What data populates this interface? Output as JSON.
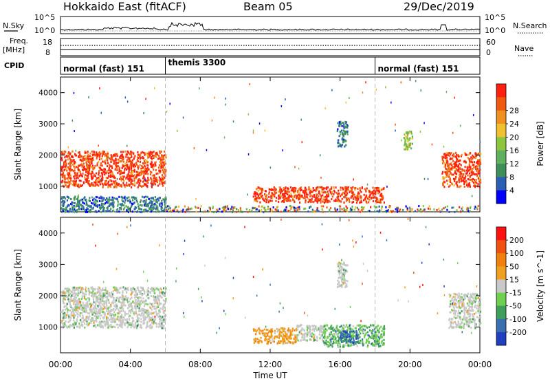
{
  "header": {
    "title": "Hokkaido East (fitACF)",
    "beam": "Beam 05",
    "date": "29/Dec/2019"
  },
  "noise_panel": {
    "left_label": "N.Sky",
    "right_label": "N.Search",
    "tick_top": "10^5",
    "tick_bottom": "10^0",
    "tick_top_right": "10^5",
    "tick_bottom_right": "10^0"
  },
  "freq_panel": {
    "left_label_1": "Freq.",
    "left_label_2": "[MHz]",
    "left_ticks": [
      "18",
      "8"
    ],
    "right_ticks": [
      "60",
      "0"
    ],
    "right_label": "Nave"
  },
  "cpid_panel": {
    "label": "CPID",
    "segments": [
      {
        "start_hour": 0,
        "end_hour": 6,
        "text": "normal (fast) 151"
      },
      {
        "start_hour": 6,
        "end_hour": 18,
        "text": "themis 3300"
      },
      {
        "start_hour": 18,
        "end_hour": 24,
        "text": "normal (fast) 151"
      }
    ]
  },
  "x_axis": {
    "label": "Time UT",
    "range_hours": [
      0,
      24
    ],
    "ticks": [
      "00:00",
      "04:00",
      "08:00",
      "12:00",
      "16:00",
      "20:00",
      "00:00"
    ],
    "tick_hours": [
      0,
      4,
      8,
      12,
      16,
      20,
      24
    ],
    "mode_change_hours": [
      6,
      18
    ]
  },
  "chart_data": [
    {
      "type": "heatmap",
      "parameter": "Power",
      "ylabel": "Slant Range [km]",
      "ylim": [
        180,
        4500
      ],
      "yticks": [
        1000,
        2000,
        3000,
        4000
      ],
      "colorbar_label": "Power [dB]",
      "colorbar_ticks": [
        "4",
        "8",
        "12",
        "16",
        "20",
        "24",
        "28"
      ],
      "colorbar_colors": [
        "#0000ff",
        "#2b5fb3",
        "#3f8f5a",
        "#5fb05f",
        "#8cc63f",
        "#f0c030",
        "#f09020",
        "#f05a10",
        "#ff2010"
      ],
      "regions": [
        {
          "t0": 0.0,
          "t1": 6.0,
          "r0": 1000,
          "r1": 2150,
          "level": "high"
        },
        {
          "t0": 11.0,
          "t1": 18.5,
          "r0": 500,
          "r1": 1000,
          "level": "high"
        },
        {
          "t0": 21.8,
          "t1": 24.0,
          "r0": 1000,
          "r1": 2100,
          "level": "high"
        },
        {
          "t0": 15.8,
          "t1": 16.4,
          "r0": 2300,
          "r1": 3100,
          "level": "low"
        },
        {
          "t0": 19.6,
          "t1": 20.1,
          "r0": 2200,
          "r1": 2800,
          "level": "mid"
        },
        {
          "t0": 6.0,
          "t1": 24.0,
          "r0": 200,
          "r1": 400,
          "level": "mixed"
        },
        {
          "t0": 0.0,
          "t1": 6.0,
          "r0": 200,
          "r1": 700,
          "level": "low"
        }
      ]
    },
    {
      "type": "heatmap",
      "parameter": "Velocity",
      "ylabel": "Slant Range [km]",
      "ylim": [
        180,
        4500
      ],
      "yticks": [
        1000,
        2000,
        3000,
        4000
      ],
      "colorbar_label": "Velocity [m s^-1]",
      "colorbar_ticks": [
        "200",
        "100",
        "50",
        "15",
        "-15",
        "-50",
        "-100",
        "-200"
      ],
      "colorbar_colors": [
        "#2040c0",
        "#3a6fb0",
        "#3f9f5a",
        "#6fcf4f",
        "#c8c8c8",
        "#f0a020",
        "#f08010",
        "#f05010",
        "#ff1010"
      ],
      "regions": [
        {
          "t0": 0.0,
          "t1": 6.0,
          "r0": 1000,
          "r1": 2300,
          "level": "grey"
        },
        {
          "t0": 22.2,
          "t1": 24.0,
          "r0": 1000,
          "r1": 2100,
          "level": "grey"
        },
        {
          "t0": 11.0,
          "t1": 13.5,
          "r0": 500,
          "r1": 1000,
          "level": "orange"
        },
        {
          "t0": 13.5,
          "t1": 15.0,
          "r0": 600,
          "r1": 1100,
          "level": "grey"
        },
        {
          "t0": 15.0,
          "t1": 18.5,
          "r0": 400,
          "r1": 1100,
          "level": "green"
        },
        {
          "t0": 15.8,
          "t1": 17.0,
          "r0": 500,
          "r1": 900,
          "level": "blue"
        },
        {
          "t0": 15.8,
          "t1": 16.4,
          "r0": 2300,
          "r1": 3100,
          "level": "grey"
        }
      ]
    }
  ]
}
